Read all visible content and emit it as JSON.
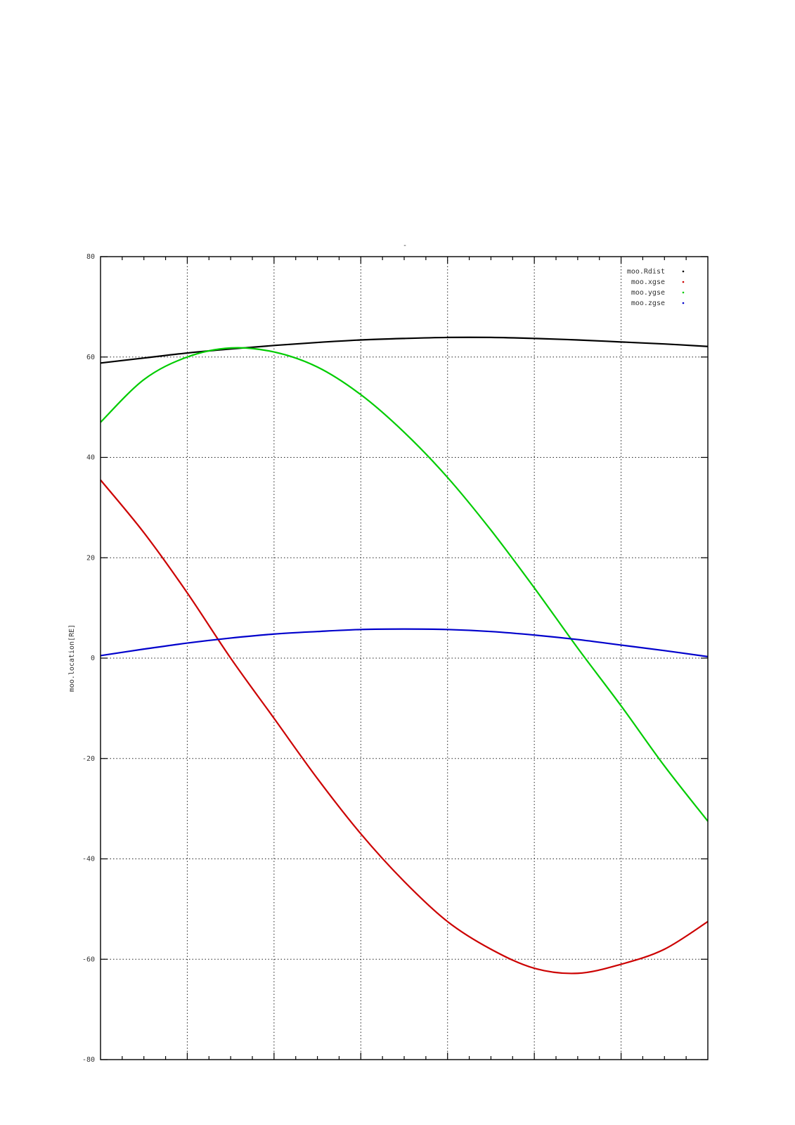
{
  "chart_data": {
    "type": "line",
    "title": "-",
    "xlabel": "",
    "ylabel": "moo.location[RE]",
    "xlim": [
      0,
      7
    ],
    "ylim": [
      -80,
      80
    ],
    "y_ticks": [
      80,
      60,
      40,
      20,
      0,
      -20,
      -40,
      -60,
      -80
    ],
    "y_tick_labels": [
      "80",
      "60",
      "40",
      "20",
      "0",
      "-20",
      "-40",
      "-60",
      "-80"
    ],
    "x_major_ticks": [
      1,
      2,
      3,
      4,
      5,
      6
    ],
    "minor_per_major": 4,
    "grid": true,
    "legend_position": "top-right",
    "series": [
      {
        "name": "moo.Rdist",
        "color": "#000000",
        "x": [
          0,
          0.5,
          1,
          1.5,
          2,
          2.5,
          3,
          3.5,
          4,
          4.5,
          5,
          5.5,
          6,
          6.5,
          7
        ],
        "values": [
          58.8,
          59.8,
          60.8,
          61.6,
          62.3,
          62.9,
          63.4,
          63.7,
          63.9,
          63.9,
          63.7,
          63.4,
          63.0,
          62.6,
          62.1
        ]
      },
      {
        "name": "moo.xgse",
        "color": "#cc0000",
        "x": [
          0,
          0.5,
          1,
          1.5,
          2,
          2.5,
          3,
          3.5,
          4,
          4.5,
          5,
          5.5,
          6,
          6.5,
          7
        ],
        "values": [
          35.5,
          25.0,
          13.0,
          0.0,
          -12.0,
          -24.0,
          -35.0,
          -44.5,
          -52.5,
          -58.0,
          -61.8,
          -62.8,
          -61.0,
          -58.0,
          -52.5
        ]
      },
      {
        "name": "moo.ygse",
        "color": "#00cc00",
        "x": [
          0,
          0.5,
          1,
          1.5,
          2,
          2.5,
          3,
          3.5,
          4,
          4.5,
          5,
          5.5,
          6,
          6.5,
          7
        ],
        "values": [
          47.0,
          55.5,
          60.0,
          61.8,
          61.0,
          58.0,
          52.5,
          45.0,
          36.0,
          25.5,
          14.0,
          2.0,
          -9.5,
          -21.5,
          -32.5
        ]
      },
      {
        "name": "moo.zgse",
        "color": "#0000cc",
        "x": [
          0,
          0.5,
          1,
          1.5,
          2,
          2.5,
          3,
          3.5,
          4,
          4.5,
          5,
          5.5,
          6,
          6.5,
          7
        ],
        "values": [
          0.5,
          1.8,
          3.0,
          4.0,
          4.8,
          5.3,
          5.7,
          5.8,
          5.7,
          5.3,
          4.6,
          3.7,
          2.6,
          1.5,
          0.3
        ]
      }
    ]
  }
}
